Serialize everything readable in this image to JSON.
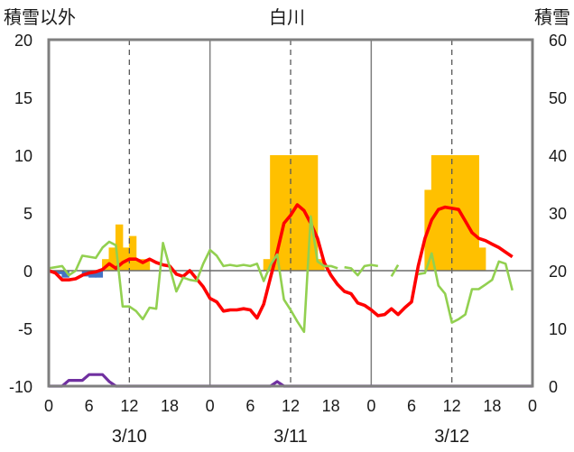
{
  "chart_data": {
    "type": "line",
    "title": "白川",
    "left_axis_title": "積雪以外",
    "right_axis_title": "積雪",
    "ylim_left": [
      -10,
      20
    ],
    "ylim_right": [
      0,
      60
    ],
    "left_ticks": [
      "20",
      "15",
      "10",
      "5",
      "0",
      "-5",
      "-10"
    ],
    "right_ticks": [
      "60",
      "50",
      "40",
      "30",
      "20",
      "10",
      "0"
    ],
    "xlim_hours": [
      0,
      72
    ],
    "x_ticks": [
      "0",
      "6",
      "12",
      "18",
      "0",
      "6",
      "12",
      "18",
      "0",
      "6",
      "12",
      "18",
      "0"
    ],
    "date_labels": [
      "3/10",
      "3/11",
      "3/12"
    ],
    "grid": "dashed vertical at 12h, solid dividers at day boundaries",
    "colors": {
      "snow_depth": "#ffc000",
      "precip": "#ffc000",
      "temperature": "#ff0000",
      "humidity_like": "#92d050",
      "sunshine": "#4472c4",
      "wind": "#7030a0",
      "frame": "#7f7f7f"
    },
    "bars_precip": [
      {
        "x": 8,
        "v": 1
      },
      {
        "x": 9,
        "v": 2
      },
      {
        "x": 10,
        "v": 4
      },
      {
        "x": 11,
        "v": 2
      },
      {
        "x": 12,
        "v": 3
      },
      {
        "x": 13,
        "v": 1
      },
      {
        "x": 14,
        "v": 1
      },
      {
        "x": 32,
        "v": 1
      },
      {
        "x": 33,
        "v": 10
      },
      {
        "x": 34,
        "v": 10
      },
      {
        "x": 35,
        "v": 10
      },
      {
        "x": 36,
        "v": 10
      },
      {
        "x": 37,
        "v": 10
      },
      {
        "x": 38,
        "v": 10
      },
      {
        "x": 39,
        "v": 10
      },
      {
        "x": 40,
        "v": 1
      },
      {
        "x": 56,
        "v": 7
      },
      {
        "x": 57,
        "v": 10
      },
      {
        "x": 58,
        "v": 10
      },
      {
        "x": 59,
        "v": 10
      },
      {
        "x": 60,
        "v": 10
      },
      {
        "x": 61,
        "v": 10
      },
      {
        "x": 62,
        "v": 10
      },
      {
        "x": 63,
        "v": 10
      },
      {
        "x": 64,
        "v": 2
      }
    ],
    "sunshine_bars": [
      {
        "x": 1,
        "v": -0.3
      },
      {
        "x": 2,
        "v": -0.6
      },
      {
        "x": 5,
        "v": -0.5
      },
      {
        "x": 6,
        "v": -0.6
      },
      {
        "x": 7,
        "v": -0.6
      }
    ],
    "series": [
      {
        "key": "temperature",
        "axis": "left",
        "points": [
          [
            0,
            0
          ],
          [
            1,
            -0.2
          ],
          [
            2,
            -0.8
          ],
          [
            3,
            -0.8
          ],
          [
            4,
            -0.7
          ],
          [
            5,
            -0.4
          ],
          [
            6,
            -0.2
          ],
          [
            7,
            -0.1
          ],
          [
            8,
            0.1
          ],
          [
            9,
            0.6
          ],
          [
            10,
            0.2
          ],
          [
            11,
            0.7
          ],
          [
            12,
            1.0
          ],
          [
            13,
            1.0
          ],
          [
            14,
            0.7
          ],
          [
            15,
            1.0
          ],
          [
            16,
            0.7
          ],
          [
            17,
            0.5
          ],
          [
            18,
            0.4
          ],
          [
            19,
            -0.3
          ],
          [
            20,
            -0.5
          ],
          [
            21,
            0
          ],
          [
            22,
            -0.7
          ],
          [
            23,
            -1.4
          ],
          [
            24,
            -2.4
          ],
          [
            25,
            -2.7
          ],
          [
            26,
            -3.5
          ],
          [
            27,
            -3.4
          ],
          [
            28,
            -3.4
          ],
          [
            29,
            -3.3
          ],
          [
            30,
            -3.4
          ],
          [
            31,
            -4.1
          ],
          [
            32,
            -2.9
          ],
          [
            33,
            -0.6
          ],
          [
            34,
            1.6
          ],
          [
            35,
            4.1
          ],
          [
            36,
            4.8
          ],
          [
            37,
            5.7
          ],
          [
            38,
            5.2
          ],
          [
            39,
            4.1
          ],
          [
            40,
            2.8
          ],
          [
            41,
            0.7
          ],
          [
            42,
            -0.4
          ],
          [
            43,
            -1.2
          ],
          [
            44,
            -1.8
          ],
          [
            45,
            -2.0
          ],
          [
            46,
            -2.8
          ],
          [
            47,
            -3.0
          ],
          [
            48,
            -3.4
          ],
          [
            49,
            -3.9
          ],
          [
            50,
            -3.8
          ],
          [
            51,
            -3.3
          ],
          [
            52,
            -3.8
          ],
          [
            53,
            -3.2
          ],
          [
            54,
            -2.7
          ],
          [
            55,
            0.4
          ],
          [
            56,
            2.8
          ],
          [
            57,
            4.4
          ],
          [
            58,
            5.3
          ],
          [
            59,
            5.5
          ],
          [
            60,
            5.4
          ],
          [
            61,
            5.3
          ],
          [
            62,
            4.3
          ],
          [
            63,
            3.3
          ],
          [
            64,
            2.8
          ],
          [
            65,
            2.6
          ],
          [
            66,
            2.3
          ],
          [
            67,
            2.0
          ],
          [
            68,
            1.6
          ],
          [
            69,
            1.2
          ]
        ]
      },
      {
        "key": "humidity_like",
        "axis": "left",
        "segments": [
          [
            [
              0,
              0.2
            ],
            [
              1,
              0.3
            ],
            [
              2,
              0.4
            ],
            [
              3,
              -0.4
            ],
            [
              4,
              0
            ],
            [
              5,
              1.3
            ],
            [
              6,
              1.2
            ],
            [
              7,
              1.1
            ],
            [
              8,
              2.0
            ],
            [
              9,
              2.5
            ],
            [
              10,
              2.2
            ],
            [
              11,
              -3.1
            ],
            [
              12,
              -3.1
            ],
            [
              13,
              -3.5
            ],
            [
              14,
              -4.2
            ],
            [
              15,
              -3.2
            ],
            [
              16,
              -3.3
            ],
            [
              17,
              2.4
            ],
            [
              18,
              0.3
            ],
            [
              19,
              -1.8
            ],
            [
              20,
              -0.6
            ],
            [
              21,
              -0.8
            ],
            [
              22,
              -0.9
            ],
            [
              23,
              0.6
            ],
            [
              24,
              1.8
            ],
            [
              25,
              1.3
            ],
            [
              26,
              0.4
            ],
            [
              27,
              0.5
            ],
            [
              28,
              0.4
            ],
            [
              29,
              0.5
            ],
            [
              30,
              0.4
            ],
            [
              31,
              0.6
            ],
            [
              32,
              -0.9
            ],
            [
              33,
              0.5
            ],
            [
              34,
              1.4
            ],
            [
              35,
              -2.5
            ],
            [
              36,
              -3.4
            ],
            [
              37,
              -4.4
            ],
            [
              38,
              -5.3
            ],
            [
              39,
              4.7
            ],
            [
              40,
              0.8
            ],
            [
              41,
              0.4
            ],
            [
              42,
              0.4
            ],
            [
              43,
              0.2
            ]
          ],
          [
            [
              44,
              0.3
            ],
            [
              45,
              0.2
            ],
            [
              46,
              -0.4
            ],
            [
              47,
              0.4
            ],
            [
              48,
              0.5
            ],
            [
              49,
              0.4
            ]
          ],
          [
            [
              51,
              -0.5
            ],
            [
              52,
              0.5
            ]
          ],
          [
            [
              55,
              -0.3
            ],
            [
              56,
              -0.2
            ],
            [
              57,
              1.5
            ],
            [
              58,
              -1.3
            ],
            [
              59,
              -2.0
            ],
            [
              60,
              -4.5
            ],
            [
              61,
              -4.2
            ],
            [
              62,
              -3.8
            ],
            [
              63,
              -1.6
            ],
            [
              64,
              -1.6
            ],
            [
              65,
              -1.2
            ],
            [
              66,
              -0.8
            ],
            [
              67,
              0.8
            ],
            [
              68,
              0.6
            ],
            [
              69,
              -1.7
            ]
          ]
        ]
      },
      {
        "key": "wind",
        "axis": "left",
        "points": [
          [
            0,
            -10
          ],
          [
            1,
            -10
          ],
          [
            2,
            -10
          ],
          [
            3,
            -9.5
          ],
          [
            4,
            -9.5
          ],
          [
            5,
            -9.5
          ],
          [
            6,
            -9
          ],
          [
            7,
            -9
          ],
          [
            8,
            -9
          ],
          [
            9,
            -9.6
          ],
          [
            10,
            -10
          ],
          [
            20,
            -10
          ],
          [
            30,
            -10
          ],
          [
            33,
            -10
          ],
          [
            34,
            -9.6
          ],
          [
            35,
            -10
          ],
          [
            45,
            -10
          ],
          [
            55,
            -10
          ],
          [
            65,
            -10
          ],
          [
            72,
            -10
          ]
        ]
      }
    ]
  }
}
